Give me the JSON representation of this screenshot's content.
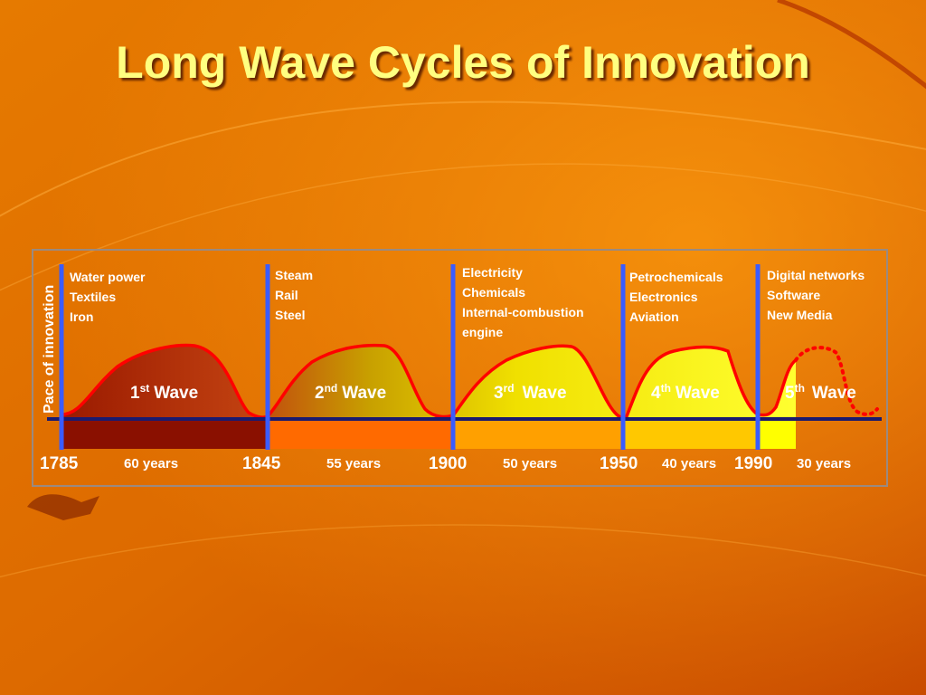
{
  "title": "Long Wave Cycles of Innovation",
  "y_axis_label": "Pace of innovation",
  "years": [
    "1785",
    "1845",
    "1900",
    "1950",
    "1990"
  ],
  "waves": [
    {
      "num": "1",
      "sup": "st",
      "word": "Wave",
      "duration": "60 years",
      "industries": [
        "Water power",
        "Textiles",
        "Iron"
      ]
    },
    {
      "num": "2",
      "sup": "nd",
      "word": "Wave",
      "duration": "55 years",
      "industries": [
        "Steam",
        "Rail",
        "Steel"
      ]
    },
    {
      "num": "3",
      "sup": "rd",
      "word": "Wave",
      "duration": "50 years",
      "industries": [
        "Electricity",
        "Chemicals",
        "Internal-combustion",
        "engine"
      ]
    },
    {
      "num": "4",
      "sup": "th",
      "word": "Wave",
      "duration": "40 years",
      "industries": [
        "Petrochemicals",
        "Electronics",
        "Aviation"
      ]
    },
    {
      "num": "5",
      "sup": "th",
      "word": "Wave",
      "duration": "30 years",
      "industries": [
        "Digital networks",
        "Software",
        "New Media"
      ]
    }
  ],
  "colors": {
    "title": "#ffff80",
    "background": "#e07800",
    "divider": "#3a5cff",
    "axis": "#1a1a6e",
    "curve": "#ff0000"
  }
}
